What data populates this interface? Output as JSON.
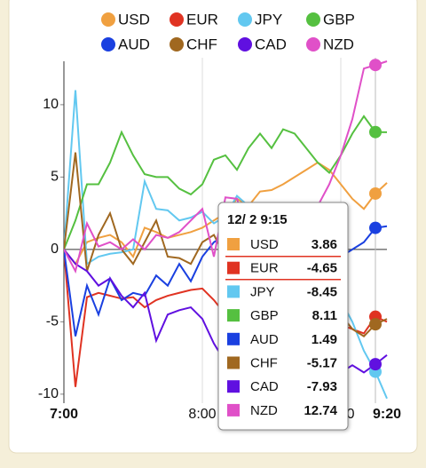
{
  "chart_data": {
    "type": "line",
    "categories": [
      "7:00",
      null,
      null,
      null,
      null,
      null,
      null,
      null,
      null,
      null,
      null,
      null,
      "8:00",
      null,
      null,
      null,
      null,
      null,
      null,
      null,
      null,
      null,
      null,
      null,
      "9:00",
      null,
      null,
      null,
      "9:20"
    ],
    "ylim": [
      -10.5,
      13
    ],
    "yticks": [
      -10,
      -5,
      0,
      5,
      10
    ],
    "tooltip_title": "12/ 2 9:15",
    "tooltip_index": 27,
    "highlight_series": 1,
    "series": [
      {
        "name": "USD",
        "color": "#f0a040",
        "values": [
          0,
          -1,
          0.5,
          0.8,
          1,
          0.5,
          -0.5,
          1.5,
          1.2,
          0.8,
          1,
          1.2,
          1.5,
          2,
          2.5,
          3.5,
          3,
          4,
          4.1,
          4.5,
          5,
          5.5,
          6,
          5.5,
          4.5,
          3.5,
          2.8,
          3.86,
          4.6
        ]
      },
      {
        "name": "EUR",
        "color": "#e03322",
        "values": [
          0,
          -9.5,
          -3.3,
          -3,
          -3.2,
          -3.4,
          -3.3,
          -4,
          -3.5,
          -3.2,
          -3,
          -2.8,
          -2.7,
          -3.5,
          -4.5,
          -4,
          -4.2,
          -4.5,
          -5,
          -4.8,
          -5,
          -5.2,
          -4.5,
          -4.8,
          -5.2,
          -5.5,
          -5.8,
          -4.65,
          -5
        ]
      },
      {
        "name": "JPY",
        "color": "#62c8f0",
        "values": [
          0,
          11,
          -1,
          -0.5,
          -0.3,
          -0.2,
          0,
          4.7,
          2.8,
          2.7,
          2,
          2.2,
          2.6,
          1.8,
          2.3,
          3.7,
          3,
          2,
          1.5,
          1,
          0.5,
          0,
          -1,
          -2,
          -3.5,
          -5,
          -7,
          -8.45,
          -10.3
        ]
      },
      {
        "name": "GBP",
        "color": "#55c040",
        "values": [
          0,
          2,
          4.5,
          4.5,
          6,
          8.1,
          6.5,
          5.2,
          5,
          5,
          4.2,
          3.8,
          4.5,
          6.2,
          6.5,
          5.5,
          7,
          8,
          7,
          8.3,
          8,
          7,
          6,
          5.3,
          6.5,
          8,
          9.2,
          8.11,
          8.1
        ]
      },
      {
        "name": "AUD",
        "color": "#1a40e0",
        "values": [
          0,
          -6,
          -2.5,
          -4.5,
          -2,
          -3.5,
          -3,
          -3.2,
          -1.8,
          -2.5,
          -1,
          -2.2,
          -0.5,
          0.5,
          1,
          1.5,
          1.2,
          0.5,
          0,
          -0.5,
          -1,
          -0.5,
          -0.8,
          -1.5,
          -0.5,
          0,
          0.5,
          1.49,
          1.6
        ]
      },
      {
        "name": "CHF",
        "color": "#a06820",
        "values": [
          0,
          6.7,
          -1.5,
          1,
          2.5,
          0,
          -1,
          0.5,
          2,
          -0.5,
          -0.6,
          -1,
          0.5,
          1,
          -0.5,
          -1.5,
          -1,
          -2,
          -2.5,
          -2,
          -3,
          -3.5,
          -3,
          -4,
          -4.5,
          -5.5,
          -6,
          -5.17,
          -4.8
        ]
      },
      {
        "name": "CAD",
        "color": "#6010e0",
        "values": [
          0,
          -1,
          -1.5,
          -2.5,
          -2,
          -3.2,
          -4,
          -3,
          -6.3,
          -4.5,
          -4.2,
          -4,
          -4.8,
          -6.5,
          -7.8,
          -9.5,
          -9.5,
          -9.3,
          -9.8,
          -10,
          -9.5,
          -9,
          -9,
          -9.2,
          -8.5,
          -8,
          -8.5,
          -7.93,
          -7.3
        ]
      },
      {
        "name": "NZD",
        "color": "#e050c8",
        "values": [
          0,
          -1.5,
          1.8,
          0.2,
          0.5,
          0,
          0.7,
          0,
          1,
          0.8,
          1.2,
          2,
          2.8,
          -0.5,
          3.6,
          3.5,
          1,
          0,
          -0.5,
          0.5,
          1,
          2,
          3,
          4.5,
          6.5,
          9,
          12.5,
          12.74,
          13
        ]
      }
    ]
  }
}
